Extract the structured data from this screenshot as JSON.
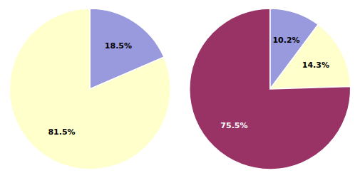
{
  "chart_data": [
    {
      "type": "pie",
      "values": [
        18.5,
        81.5
      ],
      "value_labels": [
        "18.5%",
        "81.5%"
      ],
      "colors": [
        "#9999dd",
        "#ffffcc"
      ],
      "data_labels": true
    },
    {
      "type": "pie",
      "values": [
        10.2,
        14.3,
        75.5
      ],
      "value_labels": [
        "10.2%",
        "14.3%",
        "75.5%"
      ],
      "colors": [
        "#9999dd",
        "#ffffcc",
        "#993366"
      ],
      "data_labels": true
    }
  ]
}
